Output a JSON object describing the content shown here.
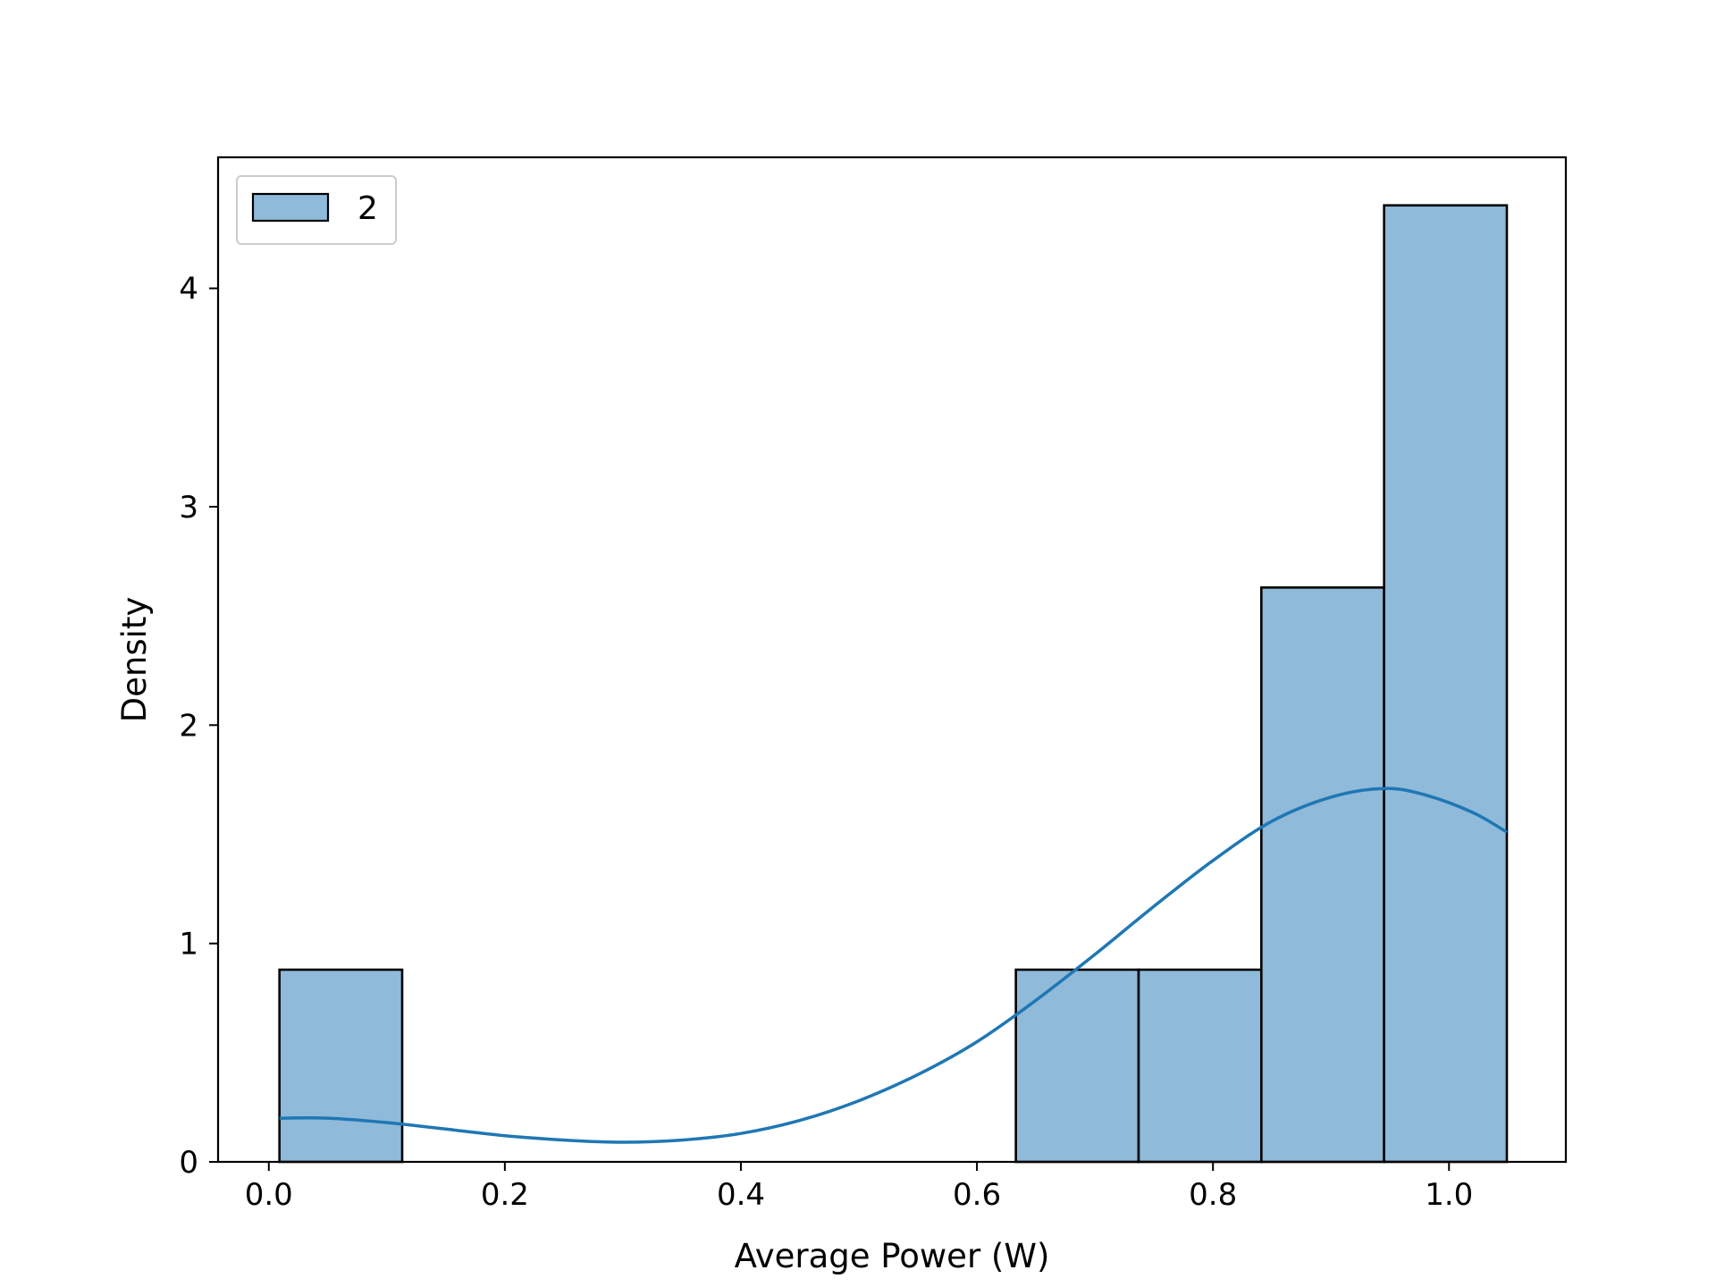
{
  "chart_data": {
    "type": "bar",
    "xlabel": "Average Power (W)",
    "ylabel": "Density",
    "xlim": [
      -0.043,
      1.099
    ],
    "ylim": [
      0,
      4.6
    ],
    "x_ticks": [
      "0.0",
      "0.2",
      "0.4",
      "0.6",
      "0.8",
      "1.0"
    ],
    "y_ticks": [
      "0",
      "1",
      "2",
      "3",
      "4"
    ],
    "grid": false,
    "legend_position": "top-left",
    "bins": [
      {
        "x0": 0.009,
        "x1": 0.113,
        "density": 0.88
      },
      {
        "x0": 0.113,
        "x1": 0.217,
        "density": 0
      },
      {
        "x0": 0.217,
        "x1": 0.321,
        "density": 0
      },
      {
        "x0": 0.321,
        "x1": 0.425,
        "density": 0
      },
      {
        "x0": 0.425,
        "x1": 0.529,
        "density": 0
      },
      {
        "x0": 0.529,
        "x1": 0.633,
        "density": 0
      },
      {
        "x0": 0.633,
        "x1": 0.737,
        "density": 0.88
      },
      {
        "x0": 0.737,
        "x1": 0.841,
        "density": 0.88
      },
      {
        "x0": 0.841,
        "x1": 0.945,
        "density": 2.63
      },
      {
        "x0": 0.945,
        "x1": 1.049,
        "density": 4.38
      }
    ],
    "kde": {
      "x": [
        0.009,
        0.05,
        0.1,
        0.15,
        0.2,
        0.25,
        0.3,
        0.35,
        0.4,
        0.45,
        0.5,
        0.55,
        0.6,
        0.65,
        0.7,
        0.75,
        0.8,
        0.85,
        0.9,
        0.945,
        0.98,
        1.02,
        1.049
      ],
      "y": [
        0.2,
        0.2,
        0.18,
        0.15,
        0.12,
        0.1,
        0.09,
        0.1,
        0.13,
        0.19,
        0.28,
        0.4,
        0.55,
        0.74,
        0.95,
        1.17,
        1.38,
        1.56,
        1.67,
        1.71,
        1.68,
        1.6,
        1.51
      ]
    },
    "series": [
      {
        "name": "2",
        "color": "#1f77b4",
        "fill_color": "#8fbad9"
      }
    ]
  }
}
